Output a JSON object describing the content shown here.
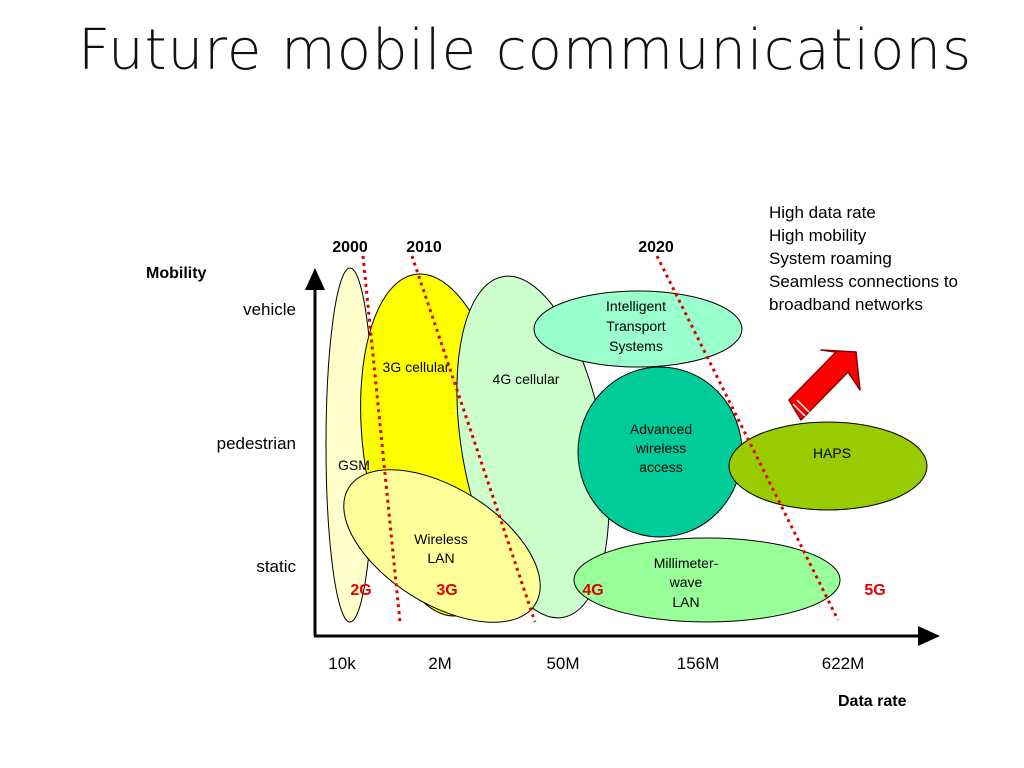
{
  "title": "Future mobile communications",
  "axes": {
    "y_label": "Mobility",
    "x_label": "Data rate",
    "y_ticks": [
      "vehicle",
      "pedestrian",
      "static"
    ],
    "x_ticks": [
      "10k",
      "2M",
      "50M",
      "156M",
      "622M"
    ]
  },
  "years": [
    "2000",
    "2010",
    "2020"
  ],
  "generations": [
    "2G",
    "3G",
    "4G",
    "5G"
  ],
  "regions": {
    "gsm": "GSM",
    "cellular_3g": "3G cellular",
    "cellular_4g": "4G cellular",
    "wireless_lan": [
      "Wireless",
      "LAN"
    ],
    "its": [
      "Intelligent",
      "Transport",
      "Systems"
    ],
    "awa": [
      "Advanced",
      "wireless",
      "access"
    ],
    "haps": "HAPS",
    "mmwave": [
      "Millimeter-",
      "wave",
      "LAN"
    ]
  },
  "notes": [
    "High data rate",
    "High mobility",
    "System roaming",
    "Seamless connections to",
    "broadband networks"
  ],
  "colors": {
    "gsm": "#FFFFCC",
    "cellular_3g": "#FFFF00",
    "cellular_4g": "#CCFFCC",
    "wireless_lan": "#FFFF99",
    "its": "#99FFCC",
    "awa": "#00CC99",
    "haps": "#99CC00",
    "mmwave": "#99FF99",
    "divider": "#E00000",
    "arrow": "#FF0000"
  }
}
